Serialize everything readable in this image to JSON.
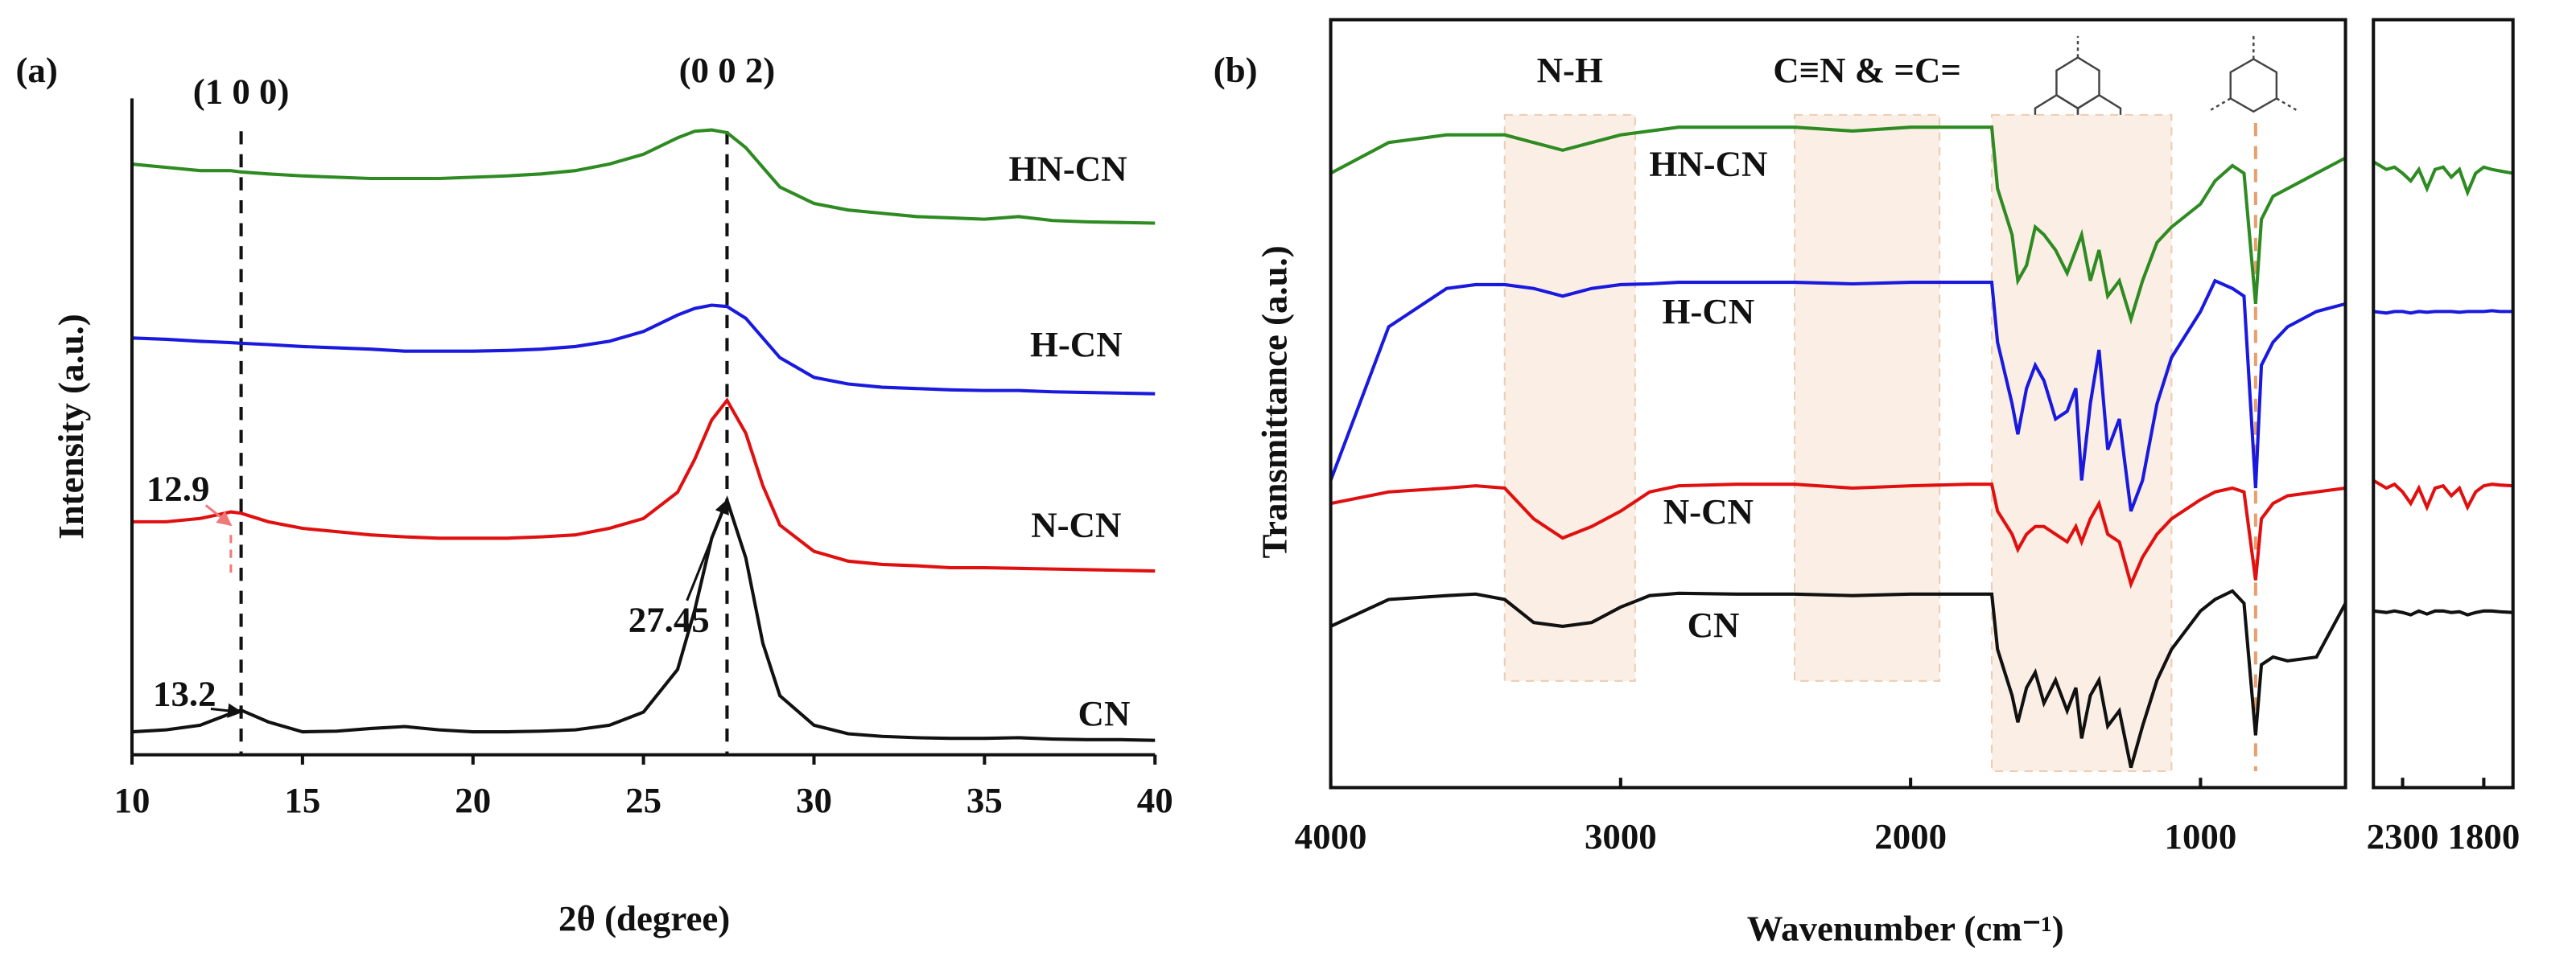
{
  "chart_data": [
    {
      "type": "line",
      "panel_label": "(a)",
      "x_label": "2θ (degree)",
      "y_label": "Intensity (a.u.)",
      "xlim": [
        10,
        40
      ],
      "xticks": [
        10,
        15,
        20,
        25,
        30,
        35,
        40
      ],
      "ylim": [
        0,
        100
      ],
      "x": [
        10,
        11,
        12,
        12.9,
        13.2,
        14,
        15,
        16,
        17,
        18,
        19,
        20,
        21,
        22,
        23,
        24,
        25,
        26,
        26.5,
        27,
        27.45,
        28,
        28.5,
        29,
        30,
        31,
        32,
        33,
        34,
        35,
        36,
        37,
        38,
        39,
        40
      ],
      "series": [
        {
          "name": "CN",
          "color": "#111111",
          "values": [
            3.5,
            3.8,
            4.5,
            6.3,
            6.8,
            5.0,
            3.5,
            3.6,
            4.0,
            4.3,
            3.8,
            3.5,
            3.5,
            3.6,
            3.8,
            4.5,
            6.5,
            13,
            22,
            33,
            38.8,
            30,
            17,
            9,
            4.5,
            3.2,
            2.8,
            2.6,
            2.5,
            2.5,
            2.6,
            2.4,
            2.3,
            2.3,
            2.2
          ]
        },
        {
          "name": "N-CN",
          "color": "#e01010",
          "values": [
            35.5,
            35.5,
            36,
            37,
            36.8,
            35.5,
            34.5,
            34,
            33.5,
            33.2,
            33,
            33,
            33,
            33.2,
            33.5,
            34.5,
            36,
            40,
            45,
            51,
            54,
            49,
            41,
            35,
            31,
            29.5,
            29,
            28.8,
            28.5,
            28.5,
            28.4,
            28.3,
            28.2,
            28.1,
            28
          ]
        },
        {
          "name": "H-CN",
          "color": "#1a1adf",
          "values": [
            63.5,
            63.3,
            63,
            62.8,
            62.7,
            62.5,
            62.2,
            62,
            61.8,
            61.5,
            61.5,
            61.5,
            61.6,
            61.8,
            62.2,
            63,
            64.5,
            67,
            68,
            68.5,
            68.3,
            66.5,
            63.5,
            60.5,
            57.5,
            56.5,
            56,
            55.8,
            55.6,
            55.5,
            55.5,
            55.3,
            55.2,
            55.1,
            55
          ]
        },
        {
          "name": "HN-CN",
          "color": "#2e8b22",
          "values": [
            90,
            89.5,
            89,
            89,
            88.8,
            88.5,
            88.2,
            88,
            87.8,
            87.8,
            87.8,
            88,
            88.2,
            88.5,
            89,
            90,
            91.5,
            94,
            95,
            95.2,
            94.8,
            92.5,
            89.5,
            86.5,
            84,
            83,
            82.5,
            82,
            81.8,
            81.6,
            82,
            81.4,
            81.2,
            81.1,
            81
          ]
        }
      ],
      "reference_lines": [
        {
          "x": 13.2,
          "label": "(1 0 0)"
        },
        {
          "x": 27.45,
          "label": "(0 0 2)"
        }
      ],
      "annotations": [
        {
          "x": 12.9,
          "color": "#f07878"
        },
        {
          "x": 13.2,
          "color": "#111111"
        },
        {
          "x": 27.45,
          "color": "#111111"
        }
      ]
    },
    {
      "type": "line",
      "panel_label": "(b)",
      "x_label": "Wavenumber (cm⁻¹)",
      "y_label": "Transmittance (a.u.)",
      "xlim": [
        4000,
        500
      ],
      "xticks": [
        4000,
        3000,
        2000,
        1000
      ],
      "ylim": [
        0,
        100
      ],
      "x": [
        4000,
        3800,
        3600,
        3500,
        3400,
        3300,
        3200,
        3100,
        3000,
        2900,
        2800,
        2600,
        2400,
        2200,
        2000,
        1800,
        1720,
        1700,
        1650,
        1630,
        1600,
        1570,
        1540,
        1500,
        1460,
        1430,
        1410,
        1380,
        1350,
        1320,
        1280,
        1240,
        1200,
        1150,
        1100,
        1000,
        950,
        890,
        850,
        810,
        790,
        750,
        700,
        600,
        500
      ],
      "series": [
        {
          "name": "CN",
          "color": "#111111",
          "values": [
            21,
            24.5,
            25,
            25.2,
            24.5,
            21.5,
            21,
            21.5,
            23.5,
            25,
            25.3,
            25.2,
            25.2,
            25,
            25.2,
            25.2,
            25.2,
            18,
            12,
            8.5,
            13,
            15,
            11,
            14,
            10,
            13,
            6.4,
            12,
            14,
            8,
            10,
            2.6,
            8,
            14,
            18,
            23,
            24.5,
            25.6,
            24,
            6.8,
            16,
            17,
            16.5,
            17,
            24
          ]
        },
        {
          "name": "N-CN",
          "color": "#e01010",
          "values": [
            37,
            38.5,
            39,
            39.3,
            39,
            35,
            32.5,
            34,
            36,
            38.5,
            39.3,
            39.5,
            39.5,
            39,
            39.3,
            39.5,
            39.5,
            36,
            33,
            31,
            33,
            34,
            34,
            33,
            32,
            34,
            32,
            35,
            37,
            33,
            32,
            26.5,
            30,
            33,
            35,
            37.5,
            38.5,
            39,
            38.5,
            27,
            35,
            37,
            38,
            38.5,
            39
          ]
        },
        {
          "name": "H-CN",
          "color": "#1a1adf",
          "values": [
            40,
            60,
            65,
            65.5,
            65.5,
            65,
            64,
            65,
            65.5,
            65.6,
            65.8,
            65.8,
            65.8,
            65.6,
            65.8,
            65.8,
            65.8,
            58,
            50,
            46,
            52,
            55,
            53,
            48,
            49,
            52,
            40,
            50,
            57,
            44,
            48,
            36,
            40,
            50,
            56,
            62,
            66,
            65,
            64,
            39,
            55,
            58,
            60,
            62,
            63
          ]
        },
        {
          "name": "HN-CN",
          "color": "#2e8b22",
          "values": [
            80,
            84,
            85,
            85,
            85,
            84,
            83,
            84,
            85,
            85.5,
            86,
            86,
            86,
            85.5,
            86,
            86,
            86,
            78,
            72,
            66,
            68,
            73,
            72,
            70,
            67,
            70,
            72,
            66,
            70,
            64,
            66,
            61,
            66,
            71,
            73,
            76,
            79,
            81,
            80,
            63,
            74,
            77,
            78,
            80,
            82
          ]
        }
      ],
      "bands": [
        {
          "from": 3400,
          "to": 2950,
          "label": "N-H"
        },
        {
          "from": 2400,
          "to": 1900,
          "label": "C≡N & =C="
        },
        {
          "from": 1720,
          "to": 1100
        }
      ],
      "reference_lines": [
        {
          "x": 810
        }
      ]
    },
    {
      "type": "line",
      "xlim": [
        2480,
        1620
      ],
      "xticks": [
        2300,
        1800
      ],
      "ylim": [
        0,
        100
      ],
      "x": [
        2480,
        2400,
        2350,
        2300,
        2250,
        2200,
        2150,
        2100,
        2050,
        2000,
        1950,
        1900,
        1850,
        1800,
        1750,
        1700,
        1620
      ],
      "series": [
        {
          "color": "#111111",
          "values": [
            23,
            22.8,
            23,
            22.8,
            22.5,
            23,
            22.6,
            23,
            23,
            22.8,
            22.9,
            22.5,
            22.8,
            23,
            23,
            22.9,
            22.8
          ]
        },
        {
          "color": "#e01010",
          "values": [
            40,
            39,
            39.5,
            38.5,
            37,
            39,
            36.5,
            39,
            39.3,
            38,
            39,
            36.5,
            38.5,
            39.3,
            39.5,
            39.4,
            39.3
          ]
        },
        {
          "color": "#1a1adf",
          "values": [
            62,
            61.8,
            62,
            62,
            61.8,
            62,
            61.9,
            62,
            62,
            62,
            61.9,
            62,
            62,
            62,
            62.1,
            62,
            62
          ]
        },
        {
          "color": "#2e8b22",
          "values": [
            81.5,
            80.5,
            80.8,
            80,
            79,
            80.5,
            78,
            80.5,
            80.8,
            79.5,
            80.5,
            77.5,
            80,
            80.8,
            80.5,
            80.3,
            80
          ]
        }
      ]
    }
  ]
}
